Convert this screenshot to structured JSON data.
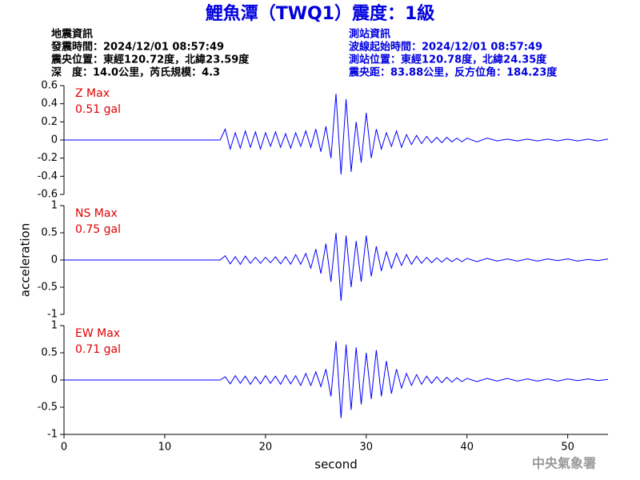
{
  "header": {
    "title": "鯉魚潭（TWQ1）震度：1級",
    "left": [
      "地震資訊",
      "發震時間：2024/12/01 08:57:49",
      "震央位置：東經120.72度，北緯23.59度",
      "深　度：14.0公里，芮氏規模：4.3"
    ],
    "right": [
      "測站資訊",
      "波線起始時間：2024/12/01 08:57:49",
      "測站位置：東經120.78度，北緯24.35度",
      "震央距：83.88公里，反方位角：184.23度"
    ]
  },
  "footer": "中央氣象署",
  "chart_data": [
    {
      "type": "line",
      "label": "Z Max",
      "max_label": "0.51 gal",
      "xlim": [
        0,
        54
      ],
      "ylim": [
        -0.6,
        0.6
      ],
      "yticks": [
        -0.6,
        -0.4,
        -0.2,
        0,
        0.2,
        0.4,
        0.6
      ],
      "x": [
        0,
        15.5,
        16,
        16.5,
        17,
        17.5,
        18,
        18.5,
        19,
        19.5,
        20,
        20.5,
        21,
        21.5,
        22,
        22.5,
        23,
        23.5,
        24,
        24.5,
        25,
        25.5,
        26,
        26.5,
        27,
        27.5,
        28,
        28.5,
        29,
        29.5,
        30,
        30.5,
        31,
        31.5,
        32,
        32.5,
        33,
        33.5,
        34,
        34.5,
        35,
        35.5,
        36,
        36.5,
        37,
        37.5,
        38,
        38.5,
        39,
        39.5,
        40,
        41,
        42,
        43,
        44,
        45,
        46,
        47,
        48,
        49,
        50,
        51,
        52,
        53,
        54
      ],
      "series": [
        {
          "color": "#0000ff",
          "values": [
            0,
            0,
            0.12,
            -0.1,
            0.08,
            -0.09,
            0.1,
            -0.08,
            0.09,
            -0.1,
            0.08,
            -0.07,
            0.09,
            -0.08,
            0.07,
            -0.09,
            0.08,
            -0.07,
            0.1,
            -0.08,
            0.12,
            -0.13,
            0.15,
            -0.2,
            0.51,
            -0.38,
            0.45,
            -0.35,
            0.2,
            -0.25,
            0.3,
            -0.2,
            0.12,
            -0.1,
            0.08,
            -0.07,
            0.1,
            -0.08,
            0.06,
            -0.05,
            0.05,
            -0.04,
            0.04,
            -0.03,
            0.03,
            -0.03,
            0.03,
            -0.02,
            0.02,
            -0.02,
            0.02,
            -0.02,
            0.02,
            -0.01,
            0.01,
            -0.01,
            0.01,
            -0.01,
            0.01,
            -0.01,
            0.01,
            -0.01,
            0.01,
            -0.01,
            0.01
          ]
        }
      ]
    },
    {
      "type": "line",
      "label": "NS Max",
      "max_label": "0.75 gal",
      "y_label": "acceleration",
      "xlim": [
        0,
        54
      ],
      "ylim": [
        -1,
        1
      ],
      "yticks": [
        -1,
        -0.5,
        0,
        0.5,
        1
      ],
      "x": [
        0,
        15.5,
        16,
        16.5,
        17,
        17.5,
        18,
        18.5,
        19,
        19.5,
        20,
        20.5,
        21,
        21.5,
        22,
        22.5,
        23,
        23.5,
        24,
        24.5,
        25,
        25.5,
        26,
        26.5,
        27,
        27.5,
        28,
        28.5,
        29,
        29.5,
        30,
        30.5,
        31,
        31.5,
        32,
        32.5,
        33,
        33.5,
        34,
        34.5,
        35,
        35.5,
        36,
        36.5,
        37,
        37.5,
        38,
        38.5,
        39,
        39.5,
        40,
        41,
        42,
        43,
        44,
        45,
        46,
        47,
        48,
        49,
        50,
        51,
        52,
        53,
        54
      ],
      "series": [
        {
          "color": "#0000ff",
          "values": [
            0,
            0,
            0.08,
            -0.07,
            0.06,
            -0.08,
            0.07,
            -0.06,
            0.05,
            -0.06,
            0.05,
            -0.05,
            0.06,
            -0.07,
            0.06,
            -0.08,
            0.1,
            -0.08,
            0.12,
            -0.15,
            0.2,
            -0.25,
            0.3,
            -0.4,
            0.5,
            -0.75,
            0.45,
            -0.5,
            0.35,
            -0.4,
            0.45,
            -0.3,
            0.25,
            -0.2,
            0.15,
            -0.15,
            0.12,
            -0.1,
            0.1,
            -0.08,
            0.07,
            -0.06,
            0.05,
            -0.05,
            0.04,
            -0.04,
            0.04,
            -0.03,
            0.03,
            -0.03,
            0.03,
            -0.03,
            0.03,
            -0.02,
            0.02,
            -0.02,
            0.02,
            -0.02,
            0.02,
            -0.01,
            0.02,
            -0.02,
            0.01,
            -0.01,
            0.02
          ]
        }
      ]
    },
    {
      "type": "line",
      "label": "EW Max",
      "max_label": "0.71 gal",
      "x_label": "second",
      "xlim": [
        0,
        54
      ],
      "xticks": [
        0,
        10,
        20,
        30,
        40,
        50
      ],
      "ylim": [
        -1,
        1
      ],
      "yticks": [
        -1,
        -0.5,
        0,
        0.5,
        1
      ],
      "x": [
        0,
        15.5,
        16,
        16.5,
        17,
        17.5,
        18,
        18.5,
        19,
        19.5,
        20,
        20.5,
        21,
        21.5,
        22,
        22.5,
        23,
        23.5,
        24,
        24.5,
        25,
        25.5,
        26,
        26.5,
        27,
        27.5,
        28,
        28.5,
        29,
        29.5,
        30,
        30.5,
        31,
        31.5,
        32,
        32.5,
        33,
        33.5,
        34,
        34.5,
        35,
        35.5,
        36,
        36.5,
        37,
        37.5,
        38,
        38.5,
        39,
        39.5,
        40,
        41,
        42,
        43,
        44,
        45,
        46,
        47,
        48,
        49,
        50,
        51,
        52,
        53,
        54
      ],
      "series": [
        {
          "color": "#0000ff",
          "values": [
            0,
            0,
            0.06,
            -0.07,
            0.08,
            -0.06,
            0.07,
            -0.08,
            0.06,
            -0.07,
            0.08,
            -0.06,
            0.07,
            -0.08,
            0.09,
            -0.07,
            0.08,
            -0.1,
            0.12,
            -0.1,
            0.15,
            -0.12,
            0.2,
            -0.3,
            0.71,
            -0.7,
            0.65,
            -0.55,
            0.6,
            -0.45,
            0.5,
            -0.35,
            0.55,
            -0.3,
            0.35,
            -0.25,
            0.2,
            -0.15,
            0.12,
            -0.1,
            0.1,
            -0.08,
            0.07,
            -0.06,
            0.06,
            -0.05,
            0.05,
            -0.04,
            0.04,
            -0.03,
            0.03,
            -0.03,
            0.03,
            -0.02,
            0.03,
            -0.02,
            0.02,
            -0.02,
            0.02,
            -0.02,
            0.02,
            -0.01,
            0.02,
            -0.01,
            0.01
          ]
        }
      ]
    }
  ]
}
